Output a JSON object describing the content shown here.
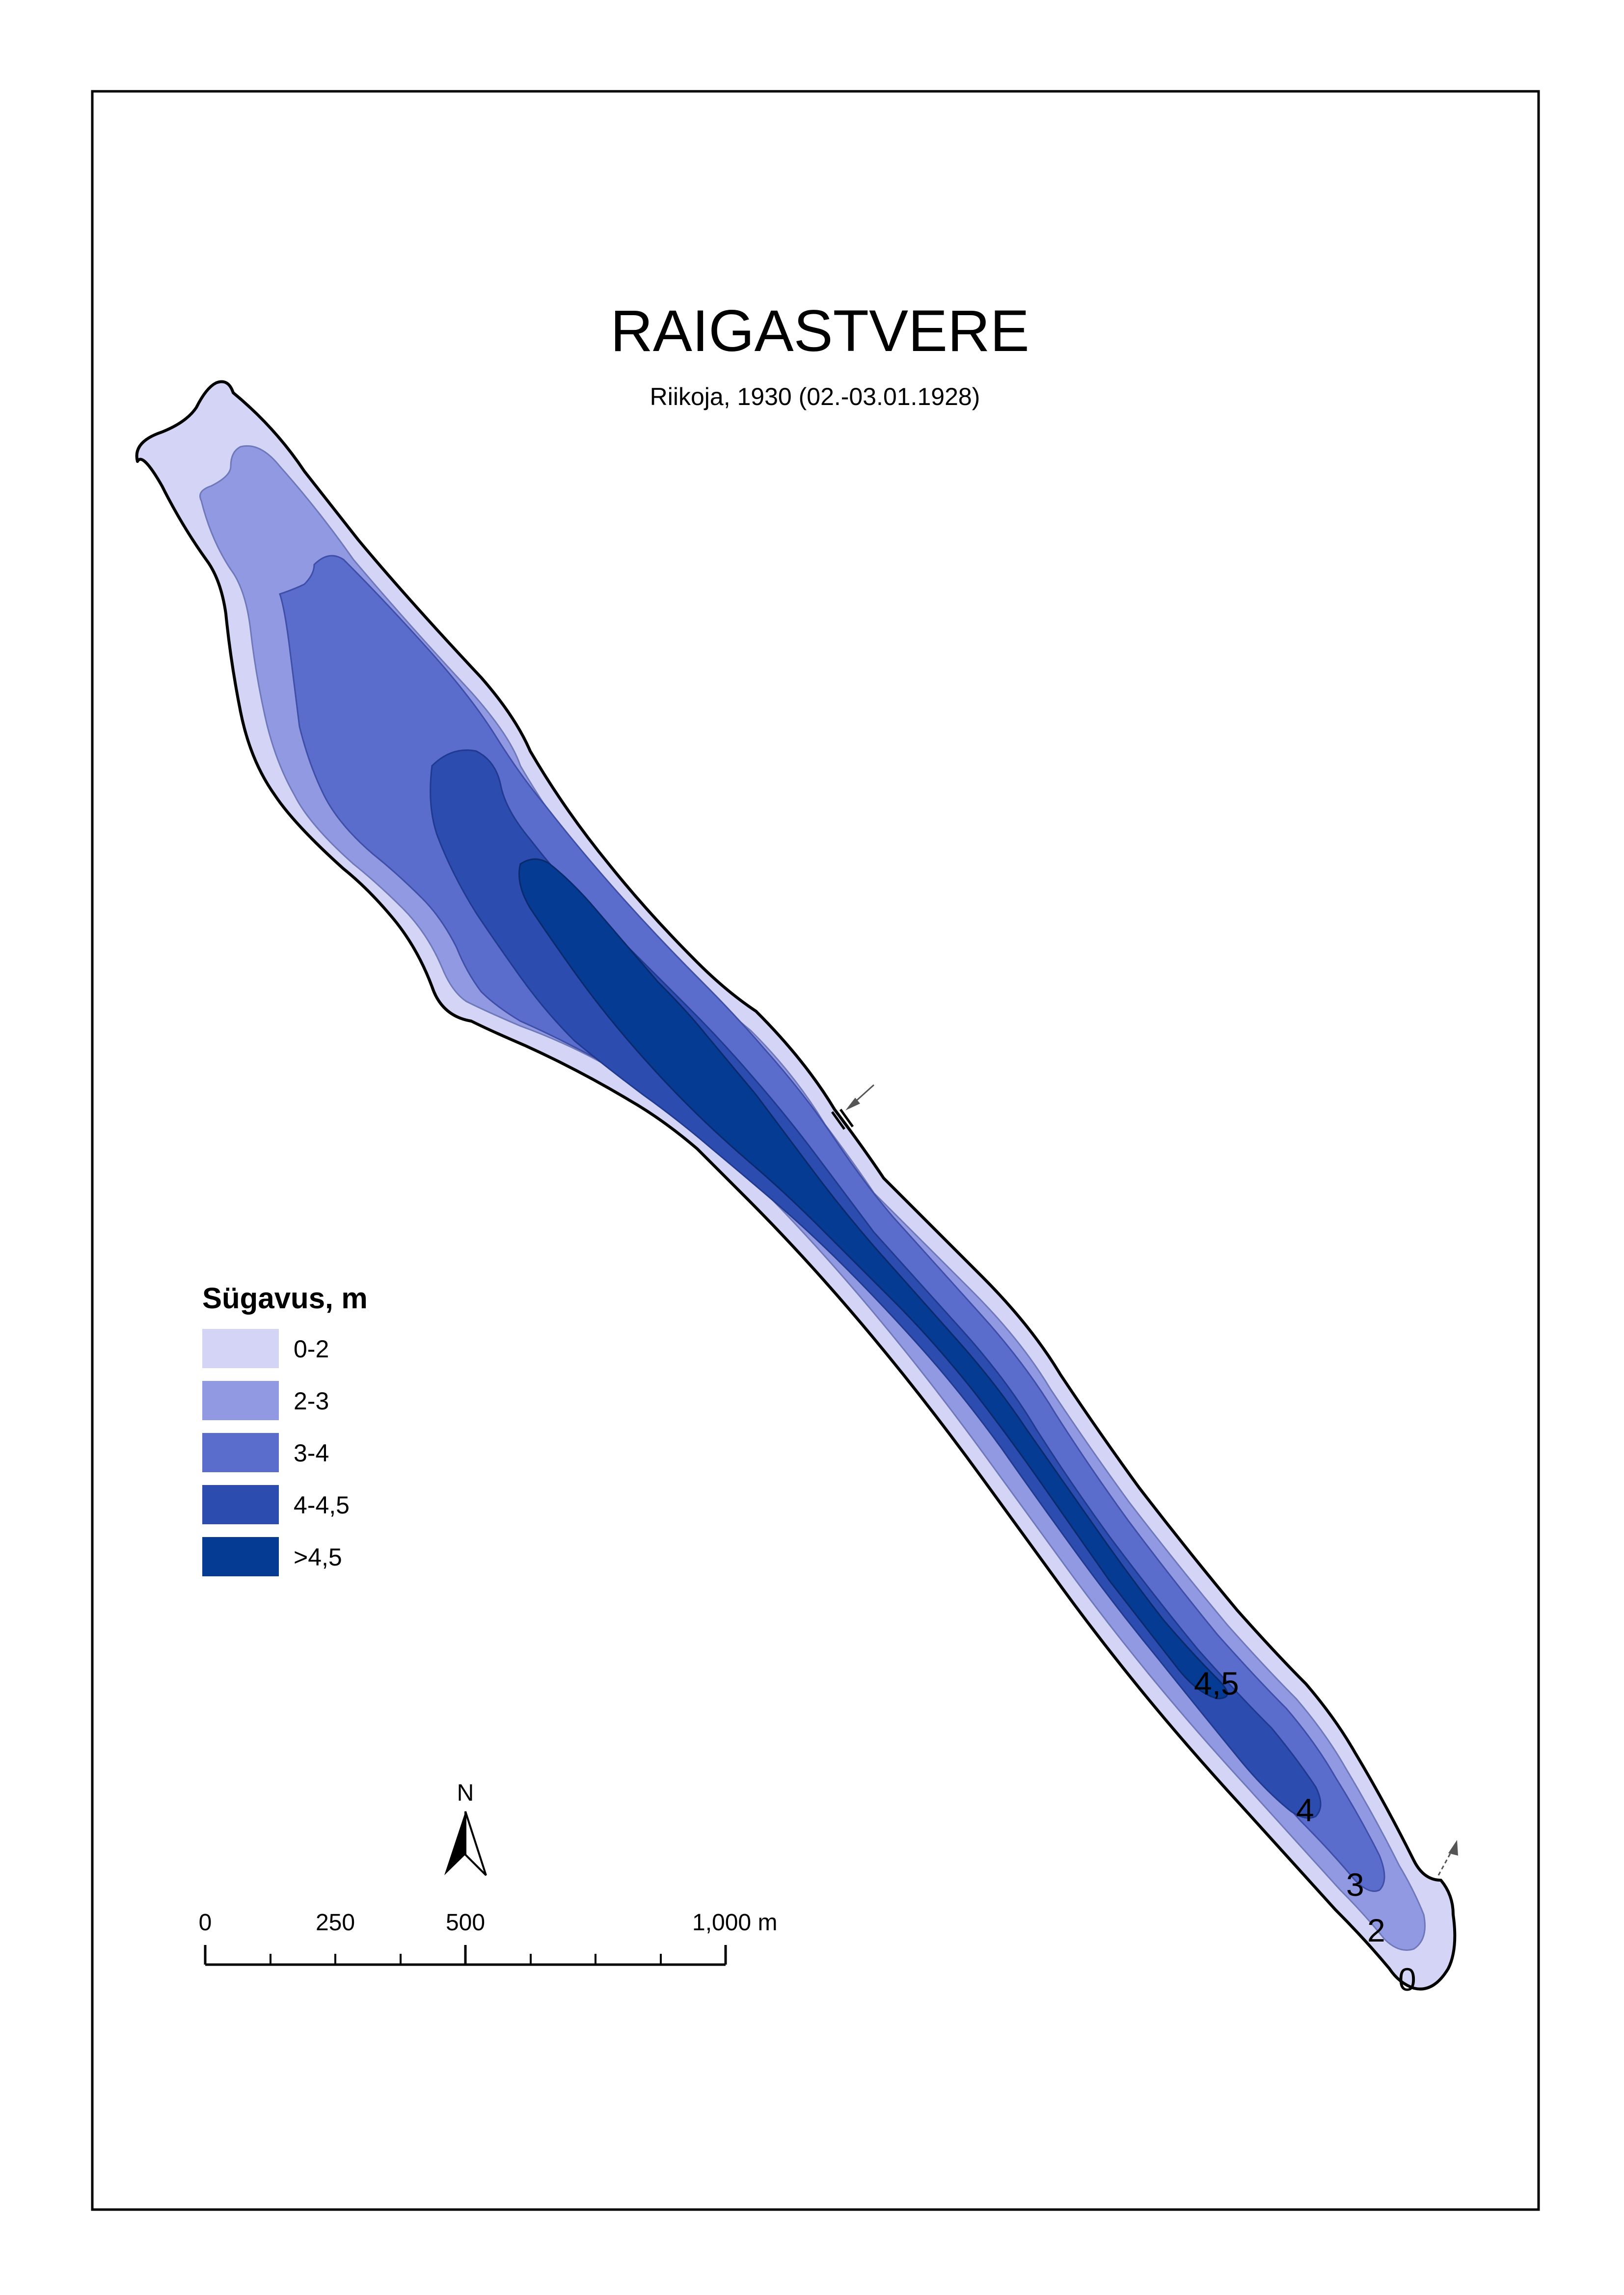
{
  "map": {
    "title": "RAIGASTVERE",
    "subtitle": "Riikoja, 1930 (02.-03.01.1928)"
  },
  "legend": {
    "title": "Sügavus, m",
    "items": [
      {
        "label": "0-2",
        "color": "#d4d4f7"
      },
      {
        "label": "2-3",
        "color": "#9199e3"
      },
      {
        "label": "3-4",
        "color": "#5a6dcc"
      },
      {
        "label": "4-4,5",
        "color": "#2c4cb0"
      },
      {
        "label": ">4,5",
        "color": "#053b92"
      }
    ]
  },
  "contour_labels": [
    "4,5",
    "4",
    "3",
    "2",
    "0"
  ],
  "north_arrow": {
    "label": "N"
  },
  "scale_bar": {
    "labels": [
      "0",
      "250",
      "500",
      "1,000 m"
    ]
  }
}
